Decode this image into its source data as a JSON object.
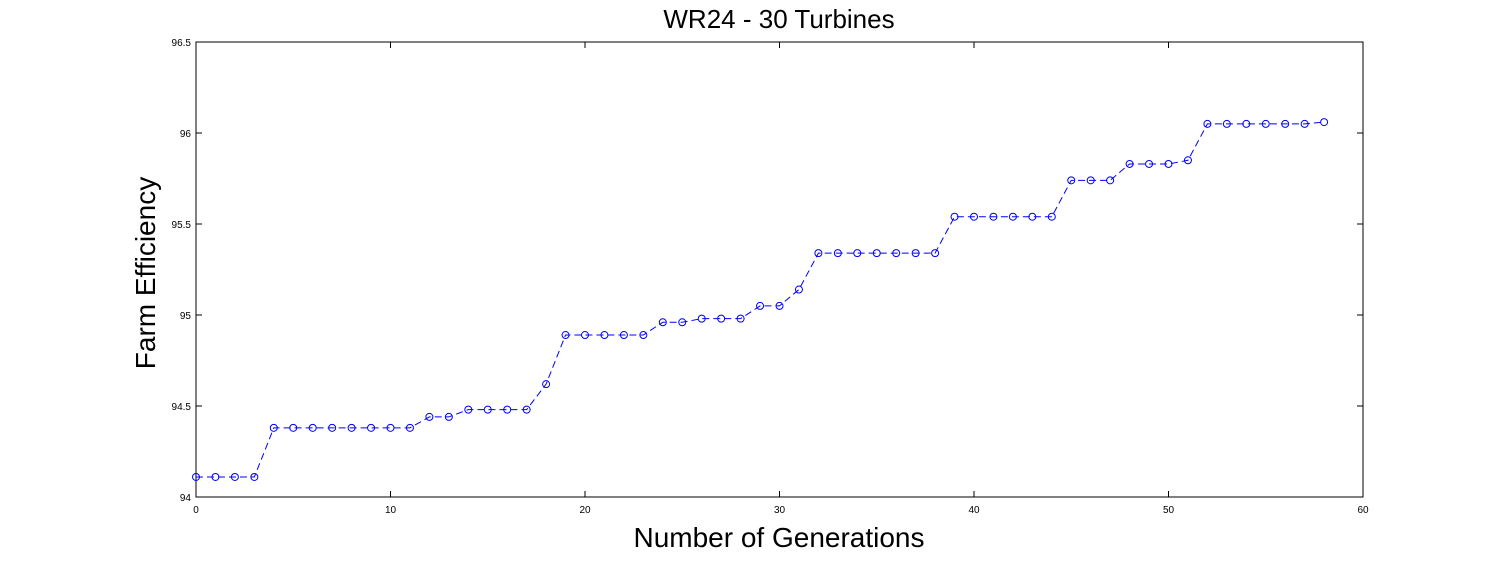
{
  "chart_data": {
    "type": "line",
    "title": "WR24 - 30 Turbines",
    "xlabel": "Number of Generations",
    "ylabel": "Farm Efficiency",
    "xlim": [
      0,
      60
    ],
    "ylim": [
      94,
      96.5
    ],
    "xticks": [
      0,
      10,
      20,
      30,
      40,
      50,
      60
    ],
    "yticks": [
      94,
      94.5,
      95,
      95.5,
      96,
      96.5
    ],
    "xtick_labels": [
      "0",
      "10",
      "20",
      "30",
      "40",
      "50",
      "60"
    ],
    "ytick_labels": [
      "94",
      "94.5",
      "95",
      "95.5",
      "96",
      "96.5"
    ],
    "grid": false,
    "line_style": "dashed",
    "marker": "circle",
    "series_color": "#0000ff",
    "series": [
      {
        "x": [
          0,
          1,
          2,
          3,
          4,
          5,
          6,
          7,
          8,
          9,
          10,
          11,
          12,
          13,
          14,
          15,
          16,
          17,
          18,
          19,
          20,
          21,
          22,
          23,
          24,
          25,
          26,
          27,
          28,
          29,
          30,
          31,
          32,
          33,
          34,
          35,
          36,
          37,
          38,
          39,
          40,
          41,
          42,
          43,
          44,
          45,
          46,
          47,
          48,
          49,
          50,
          51,
          52,
          53,
          54,
          55,
          56,
          57,
          58
        ],
        "values": [
          94.11,
          94.11,
          94.11,
          94.11,
          94.38,
          94.38,
          94.38,
          94.38,
          94.38,
          94.38,
          94.38,
          94.38,
          94.44,
          94.44,
          94.48,
          94.48,
          94.48,
          94.48,
          94.62,
          94.89,
          94.89,
          94.89,
          94.89,
          94.89,
          94.96,
          94.96,
          94.98,
          94.98,
          94.98,
          95.05,
          95.05,
          95.14,
          95.34,
          95.34,
          95.34,
          95.34,
          95.34,
          95.34,
          95.34,
          95.54,
          95.54,
          95.54,
          95.54,
          95.54,
          95.54,
          95.74,
          95.74,
          95.74,
          95.83,
          95.83,
          95.83,
          95.85,
          96.05,
          96.05,
          96.05,
          96.05,
          96.05,
          96.05,
          96.06
        ]
      }
    ]
  }
}
